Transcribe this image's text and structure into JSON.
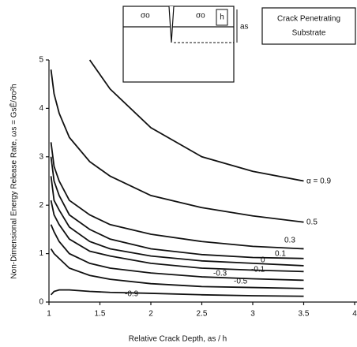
{
  "chart_data": {
    "type": "line",
    "xlabel": "Relative Crack Depth, as / h",
    "ylabel": "Non-Dimensional Energy Release Rate,  ωs = GsĒ/σo²h",
    "x": [
      1.02,
      1.05,
      1.1,
      1.2,
      1.4,
      1.6,
      2,
      2.5,
      3,
      3.5
    ],
    "series": [
      {
        "name": "α = 0.9",
        "color": "#111",
        "values": [
          null,
          null,
          null,
          null,
          5.0,
          4.4,
          3.6,
          3.0,
          2.7,
          2.5
        ]
      },
      {
        "name": "0.5",
        "color": "#111",
        "values": [
          4.8,
          4.3,
          3.9,
          3.4,
          2.9,
          2.6,
          2.2,
          1.95,
          1.78,
          1.65
        ]
      },
      {
        "name": "0.3",
        "color": "#111",
        "values": [
          3.3,
          2.8,
          2.5,
          2.1,
          1.8,
          1.6,
          1.4,
          1.25,
          1.15,
          1.1
        ]
      },
      {
        "name": "0.1",
        "color": "#111",
        "values": [
          3.0,
          2.5,
          2.2,
          1.8,
          1.5,
          1.3,
          1.1,
          0.98,
          0.92,
          0.9
        ]
      },
      {
        "name": "0",
        "color": "#111",
        "values": [
          2.6,
          2.1,
          1.9,
          1.55,
          1.25,
          1.1,
          0.95,
          0.85,
          0.8,
          0.75
        ]
      },
      {
        "name": "-0.1",
        "color": "#111",
        "values": [
          2.1,
          1.8,
          1.6,
          1.3,
          1.05,
          0.95,
          0.8,
          0.7,
          0.66,
          0.63
        ]
      },
      {
        "name": "-0.3",
        "color": "#111",
        "values": [
          1.6,
          1.45,
          1.25,
          1.0,
          0.8,
          0.7,
          0.6,
          0.52,
          0.48,
          0.45
        ]
      },
      {
        "name": "-0.5",
        "color": "#111",
        "values": [
          1.1,
          1.0,
          0.9,
          0.7,
          0.55,
          0.47,
          0.38,
          0.32,
          0.3,
          0.28
        ]
      },
      {
        "name": "-0.9",
        "color": "#111",
        "values": [
          0.15,
          0.22,
          0.25,
          0.25,
          0.22,
          0.2,
          0.18,
          0.15,
          0.13,
          0.12
        ]
      }
    ],
    "xlim": [
      1,
      4
    ],
    "xticks": [
      1,
      1.5,
      2,
      2.5,
      3,
      3.5,
      4
    ],
    "ylim": [
      0,
      5
    ],
    "yticks": [
      0,
      1,
      2,
      3,
      4,
      5
    ],
    "inset": {
      "stress_left": "σo",
      "stress_right": "σo",
      "thickness": "h",
      "depth": "as",
      "caption": [
        "Crack Penetrating",
        "Substrate"
      ]
    }
  }
}
